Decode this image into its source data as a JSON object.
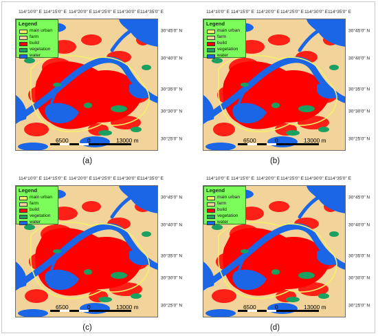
{
  "lon_labels": [
    "114°10'0\" E",
    "114°15'0\" E",
    "114°20'0\" E",
    "114°25'0\" E",
    "114°30'0\" E",
    "114°35'0\" E"
  ],
  "lat_labels": [
    "30°45'0\" N",
    "30°40'0\" N",
    "30°35'0\" N",
    "30°30'0\" N",
    "30°25'0\" N"
  ],
  "legend": {
    "title": "Legend",
    "items": [
      {
        "label": "main urban",
        "color": "#f4f06a"
      },
      {
        "label": "farm",
        "color": "#f2d49a"
      },
      {
        "label": "build",
        "color": "#ff0000"
      },
      {
        "label": "vegetation",
        "color": "#1aa060"
      },
      {
        "label": "water",
        "color": "#1a66e6"
      }
    ]
  },
  "scale": {
    "left": "6500",
    "mid": "0",
    "right": "13000 m"
  },
  "panels": [
    {
      "caption": "(a)"
    },
    {
      "caption": "(b)"
    },
    {
      "caption": "(c)"
    },
    {
      "caption": "(d)"
    }
  ],
  "colors": {
    "farm": "#f2d49a",
    "build": "#ff0000",
    "water": "#1a66e6",
    "vegetation": "#1aa060",
    "urban_boundary": "#f4f06a"
  }
}
